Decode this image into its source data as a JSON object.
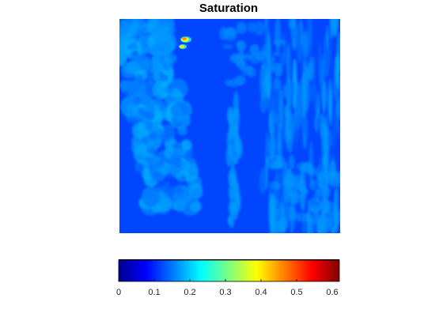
{
  "title": "Saturation",
  "chart_data": {
    "type": "heatmap",
    "title": "Saturation",
    "colormap": "jet",
    "clim": [
      0,
      0.62
    ],
    "colorbar": {
      "orientation": "horizontal",
      "ticks": [
        0,
        0.1,
        0.2,
        0.3,
        0.4,
        0.5,
        0.6
      ],
      "tick_labels": [
        "0",
        "0.1",
        "0.2",
        "0.3",
        "0.4",
        "0.5",
        "0.6"
      ]
    },
    "background_value": 0.12,
    "features": [
      {
        "region": "left cell cluster",
        "typical_value": 0.17
      },
      {
        "region": "right fibrous area",
        "typical_value": 0.16
      },
      {
        "region": "central strand",
        "typical_value": 0.17
      },
      {
        "region": "hotspot near top",
        "peak_value": 0.45
      }
    ]
  }
}
